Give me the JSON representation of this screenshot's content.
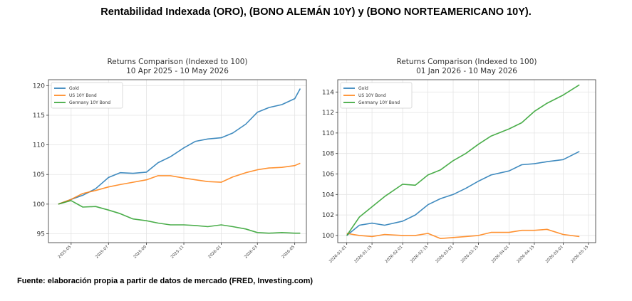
{
  "main_title": "Rentabilidad Indexada (ORO), (BONO ALEMÁN 10Y) y (BONO NORTEAMERICANO 10Y).",
  "source_note": "Fuente: elaboración propia a partir de datos de mercado (FRED, Investing.com)",
  "colors": {
    "gold": "#1f77b4",
    "us": "#ff7f0e",
    "germany": "#2ca02c"
  },
  "chart_data": [
    {
      "type": "line",
      "title": "Returns Comparison (Indexed to 100)",
      "subtitle": "10 Apr 2025 - 10 May 2026",
      "xlabel": "",
      "ylabel": "",
      "xlim": [
        "2025-03-25",
        "2026-05-20"
      ],
      "ylim": [
        93.5,
        121
      ],
      "yticks": [
        95,
        100,
        105,
        110,
        115,
        120
      ],
      "xticks": [
        "2025-05",
        "2025-07",
        "2025-09",
        "2025-11",
        "2026-01",
        "2026-03",
        "2026-05"
      ],
      "grid": true,
      "legend": "top-left",
      "series": [
        {
          "name": "Gold",
          "color": "#1f77b4",
          "x": [
            "2025-04-10",
            "2025-05-01",
            "2025-05-20",
            "2025-06-10",
            "2025-07-01",
            "2025-07-20",
            "2025-08-10",
            "2025-09-01",
            "2025-09-20",
            "2025-10-10",
            "2025-11-01",
            "2025-11-20",
            "2025-12-10",
            "2026-01-01",
            "2026-01-20",
            "2026-02-10",
            "2026-03-01",
            "2026-03-20",
            "2026-04-10",
            "2026-05-01",
            "2026-05-10"
          ],
          "y": [
            100,
            100.8,
            101.5,
            102.6,
            104.5,
            105.3,
            105.2,
            105.4,
            107,
            108,
            109.5,
            110.6,
            111,
            111.2,
            112,
            113.5,
            115.5,
            116.3,
            116.8,
            117.8,
            119.5
          ]
        },
        {
          "name": "US 10Y Bond",
          "color": "#ff7f0e",
          "x": [
            "2025-04-10",
            "2025-05-01",
            "2025-05-20",
            "2025-06-10",
            "2025-07-01",
            "2025-07-20",
            "2025-08-10",
            "2025-09-01",
            "2025-09-20",
            "2025-10-10",
            "2025-11-01",
            "2025-11-20",
            "2025-12-10",
            "2026-01-01",
            "2026-01-20",
            "2026-02-10",
            "2026-03-01",
            "2026-03-20",
            "2026-04-10",
            "2026-05-01",
            "2026-05-10"
          ],
          "y": [
            100,
            100.8,
            101.8,
            102.3,
            102.9,
            103.3,
            103.7,
            104.1,
            104.8,
            104.8,
            104.4,
            104.1,
            103.8,
            103.7,
            104.6,
            105.3,
            105.8,
            106.1,
            106.2,
            106.5,
            106.9
          ]
        },
        {
          "name": "Germany 10Y Bond",
          "color": "#2ca02c",
          "x": [
            "2025-04-10",
            "2025-05-01",
            "2025-05-20",
            "2025-06-10",
            "2025-07-01",
            "2025-07-20",
            "2025-08-10",
            "2025-09-01",
            "2025-09-20",
            "2025-10-10",
            "2025-11-01",
            "2025-11-20",
            "2025-12-10",
            "2026-01-01",
            "2026-01-20",
            "2026-02-10",
            "2026-03-01",
            "2026-03-20",
            "2026-04-10",
            "2026-05-01",
            "2026-05-10"
          ],
          "y": [
            100,
            100.6,
            99.5,
            99.6,
            99,
            98.4,
            97.5,
            97.2,
            96.8,
            96.5,
            96.5,
            96.4,
            96.2,
            96.5,
            96.2,
            95.8,
            95.2,
            95.1,
            95.2,
            95.1,
            95.1
          ]
        }
      ]
    },
    {
      "type": "line",
      "title": "Returns Comparison (Indexed to 100)",
      "subtitle": "01 Jan 2026 - 10 May 2026",
      "xlabel": "",
      "ylabel": "",
      "xlim": [
        "2025-12-27",
        "2026-05-19"
      ],
      "ylim": [
        99.3,
        115.2
      ],
      "yticks": [
        100,
        102,
        104,
        106,
        108,
        110,
        112,
        114
      ],
      "xticks": [
        "2026-01-01",
        "2026-01-15",
        "2026-02-01",
        "2026-02-15",
        "2026-03-01",
        "2026-03-15",
        "2026-04-01",
        "2026-04-15",
        "2026-05-01",
        "2026-05-15"
      ],
      "grid": true,
      "legend": "top-left",
      "series": [
        {
          "name": "Gold",
          "color": "#1f77b4",
          "x": [
            "2026-01-01",
            "2026-01-08",
            "2026-01-15",
            "2026-01-22",
            "2026-02-01",
            "2026-02-08",
            "2026-02-15",
            "2026-02-22",
            "2026-03-01",
            "2026-03-08",
            "2026-03-15",
            "2026-03-22",
            "2026-04-01",
            "2026-04-08",
            "2026-04-15",
            "2026-04-22",
            "2026-05-01",
            "2026-05-10"
          ],
          "y": [
            100,
            101,
            101.2,
            101,
            101.4,
            102,
            103,
            103.6,
            104,
            104.6,
            105.3,
            105.9,
            106.3,
            106.9,
            107,
            107.2,
            107.4,
            108.2
          ]
        },
        {
          "name": "US 10Y Bond",
          "color": "#ff7f0e",
          "x": [
            "2026-01-01",
            "2026-01-08",
            "2026-01-15",
            "2026-01-22",
            "2026-02-01",
            "2026-02-08",
            "2026-02-15",
            "2026-02-22",
            "2026-03-01",
            "2026-03-08",
            "2026-03-15",
            "2026-03-22",
            "2026-04-01",
            "2026-04-08",
            "2026-04-15",
            "2026-04-22",
            "2026-05-01",
            "2026-05-10"
          ],
          "y": [
            100.2,
            100,
            99.9,
            100.1,
            100,
            100,
            100.2,
            99.7,
            99.8,
            99.9,
            100,
            100.3,
            100.3,
            100.5,
            100.5,
            100.6,
            100.1,
            99.9
          ]
        },
        {
          "name": "Germany 10Y Bond",
          "color": "#2ca02c",
          "x": [
            "2026-01-01",
            "2026-01-08",
            "2026-01-15",
            "2026-01-22",
            "2026-02-01",
            "2026-02-08",
            "2026-02-15",
            "2026-02-22",
            "2026-03-01",
            "2026-03-08",
            "2026-03-15",
            "2026-03-22",
            "2026-04-01",
            "2026-04-08",
            "2026-04-15",
            "2026-04-22",
            "2026-05-01",
            "2026-05-10"
          ],
          "y": [
            100,
            101.8,
            102.8,
            103.8,
            105,
            104.9,
            105.9,
            106.4,
            107.3,
            108,
            108.9,
            109.7,
            110.4,
            111,
            112.1,
            112.9,
            113.7,
            114.7
          ]
        }
      ]
    }
  ]
}
